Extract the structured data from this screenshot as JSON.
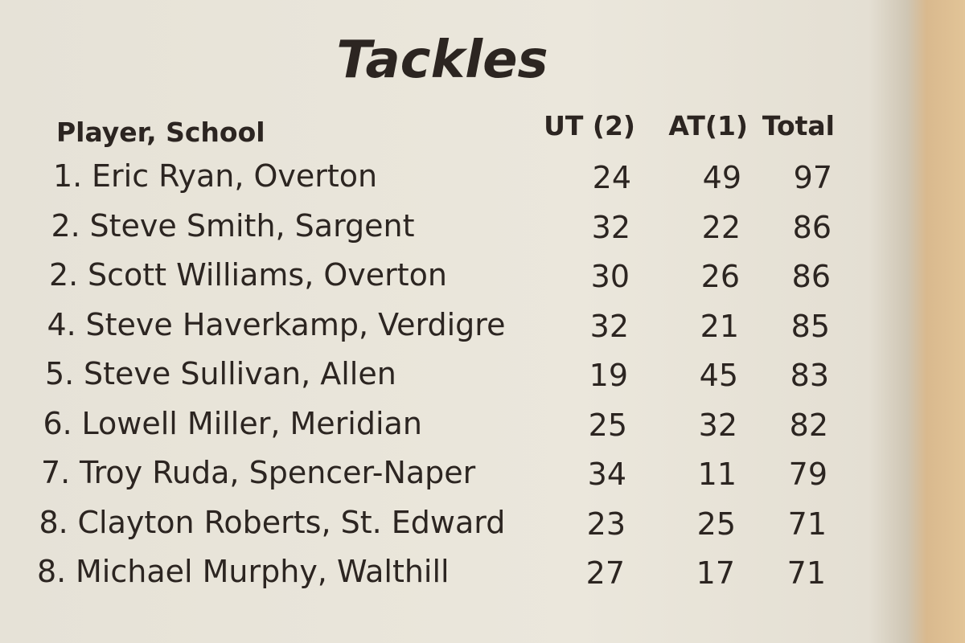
{
  "title": "Tackles",
  "table": {
    "header": [
      "Player, School",
      "UT (2)",
      "AT(1)",
      "Total"
    ],
    "rows": [
      [
        "1.",
        "Eric Ryan, Overton",
        24,
        49,
        97
      ],
      [
        "2.",
        "Steve Smith, Sargent",
        32,
        22,
        86
      ],
      [
        "2.",
        "Scott Williams, Overton",
        30,
        26,
        86
      ],
      [
        "4.",
        "Steve Haverkamp, Verdigre",
        32,
        21,
        85
      ],
      [
        "5.",
        "Steve Sullivan, Allen",
        19,
        45,
        83
      ],
      [
        "6.",
        "Lowell Miller, Meridian",
        25,
        32,
        82
      ],
      [
        "7.",
        "Troy Ruda, Spencer-Naper",
        34,
        11,
        79
      ],
      [
        "8.",
        "Clayton Roberts, St. Edward",
        23,
        25,
        71
      ],
      [
        "8.",
        "Michael Murphy, Walthill",
        27,
        17,
        71
      ]
    ]
  }
}
